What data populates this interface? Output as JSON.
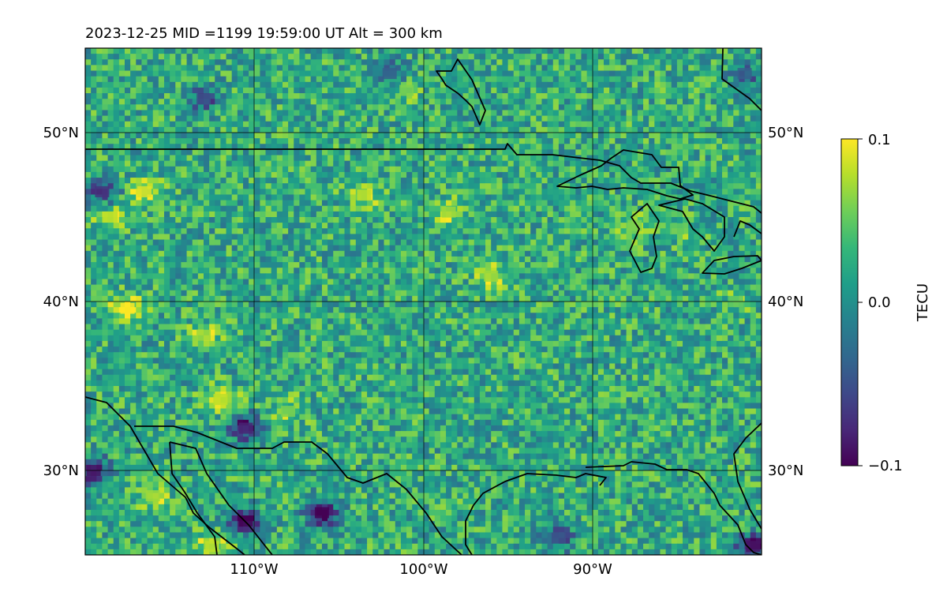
{
  "header": {
    "title": "2023-12-25  MID =1199    19:59:00  UT  Alt = 300 km"
  },
  "chart_data": {
    "type": "heatmap",
    "title": "2023-12-25  MID =1199    19:59:00  UT  Alt = 300 km",
    "map_extent": {
      "lon": [
        -120,
        -80
      ],
      "lat": [
        25,
        55
      ]
    },
    "lon_ticks": [
      {
        "value": -110,
        "label": "110°W"
      },
      {
        "value": -100,
        "label": "100°W"
      },
      {
        "value": -90,
        "label": "90°W"
      }
    ],
    "lat_ticks": [
      {
        "value": 30,
        "label": "30°N"
      },
      {
        "value": 40,
        "label": "40°N"
      },
      {
        "value": 50,
        "label": "50°N"
      }
    ],
    "grid": true,
    "colorbar": {
      "label": "TECU",
      "range": [
        -0.1,
        0.1
      ],
      "ticks": [
        {
          "value": 0.1,
          "label": "0.1"
        },
        {
          "value": 0.0,
          "label": "0.0"
        },
        {
          "value": -0.1,
          "label": "−0.1"
        }
      ],
      "colormap": [
        "#440154",
        "#482878",
        "#3e4989",
        "#31688e",
        "#26828e",
        "#1f9e89",
        "#35b779",
        "#6ece58",
        "#b5de2b",
        "#fde725"
      ]
    },
    "hotspots": [
      {
        "lon": -117.5,
        "lat": 39.6,
        "value": 0.1
      },
      {
        "lon": -116.5,
        "lat": 46.5,
        "value": 0.09
      },
      {
        "lon": -118.5,
        "lat": 45.0,
        "value": 0.08
      },
      {
        "lon": -103.5,
        "lat": 46.3,
        "value": 0.08
      },
      {
        "lon": -98.5,
        "lat": 45.3,
        "value": 0.07
      },
      {
        "lon": -96.0,
        "lat": 41.5,
        "value": 0.07
      },
      {
        "lon": -113.0,
        "lat": 38.0,
        "value": 0.07
      },
      {
        "lon": -112.0,
        "lat": 34.2,
        "value": 0.08
      },
      {
        "lon": -108.0,
        "lat": 33.5,
        "value": 0.06
      },
      {
        "lon": -101.0,
        "lat": 52.5,
        "value": 0.06
      },
      {
        "lon": -116.0,
        "lat": 28.5,
        "value": 0.07
      },
      {
        "lon": -112.5,
        "lat": 25.5,
        "value": 0.08
      },
      {
        "lon": -87.5,
        "lat": 44.5,
        "value": 0.06
      },
      {
        "lon": -85.0,
        "lat": 44.3,
        "value": 0.05
      },
      {
        "lon": -81.5,
        "lat": 40.0,
        "value": 0.05
      },
      {
        "lon": -110.5,
        "lat": 27.0,
        "value": -0.1
      },
      {
        "lon": -106.0,
        "lat": 27.5,
        "value": -0.1
      },
      {
        "lon": -119.5,
        "lat": 30.0,
        "value": -0.09
      },
      {
        "lon": -110.5,
        "lat": 32.5,
        "value": -0.08
      },
      {
        "lon": -119.0,
        "lat": 46.5,
        "value": -0.07
      },
      {
        "lon": -113.0,
        "lat": 52.0,
        "value": -0.05
      },
      {
        "lon": -102.0,
        "lat": 53.5,
        "value": -0.04
      },
      {
        "lon": -81.0,
        "lat": 53.5,
        "value": -0.04
      },
      {
        "lon": -92.0,
        "lat": 26.0,
        "value": -0.05
      },
      {
        "lon": -80.5,
        "lat": 25.5,
        "value": -0.09
      }
    ]
  }
}
